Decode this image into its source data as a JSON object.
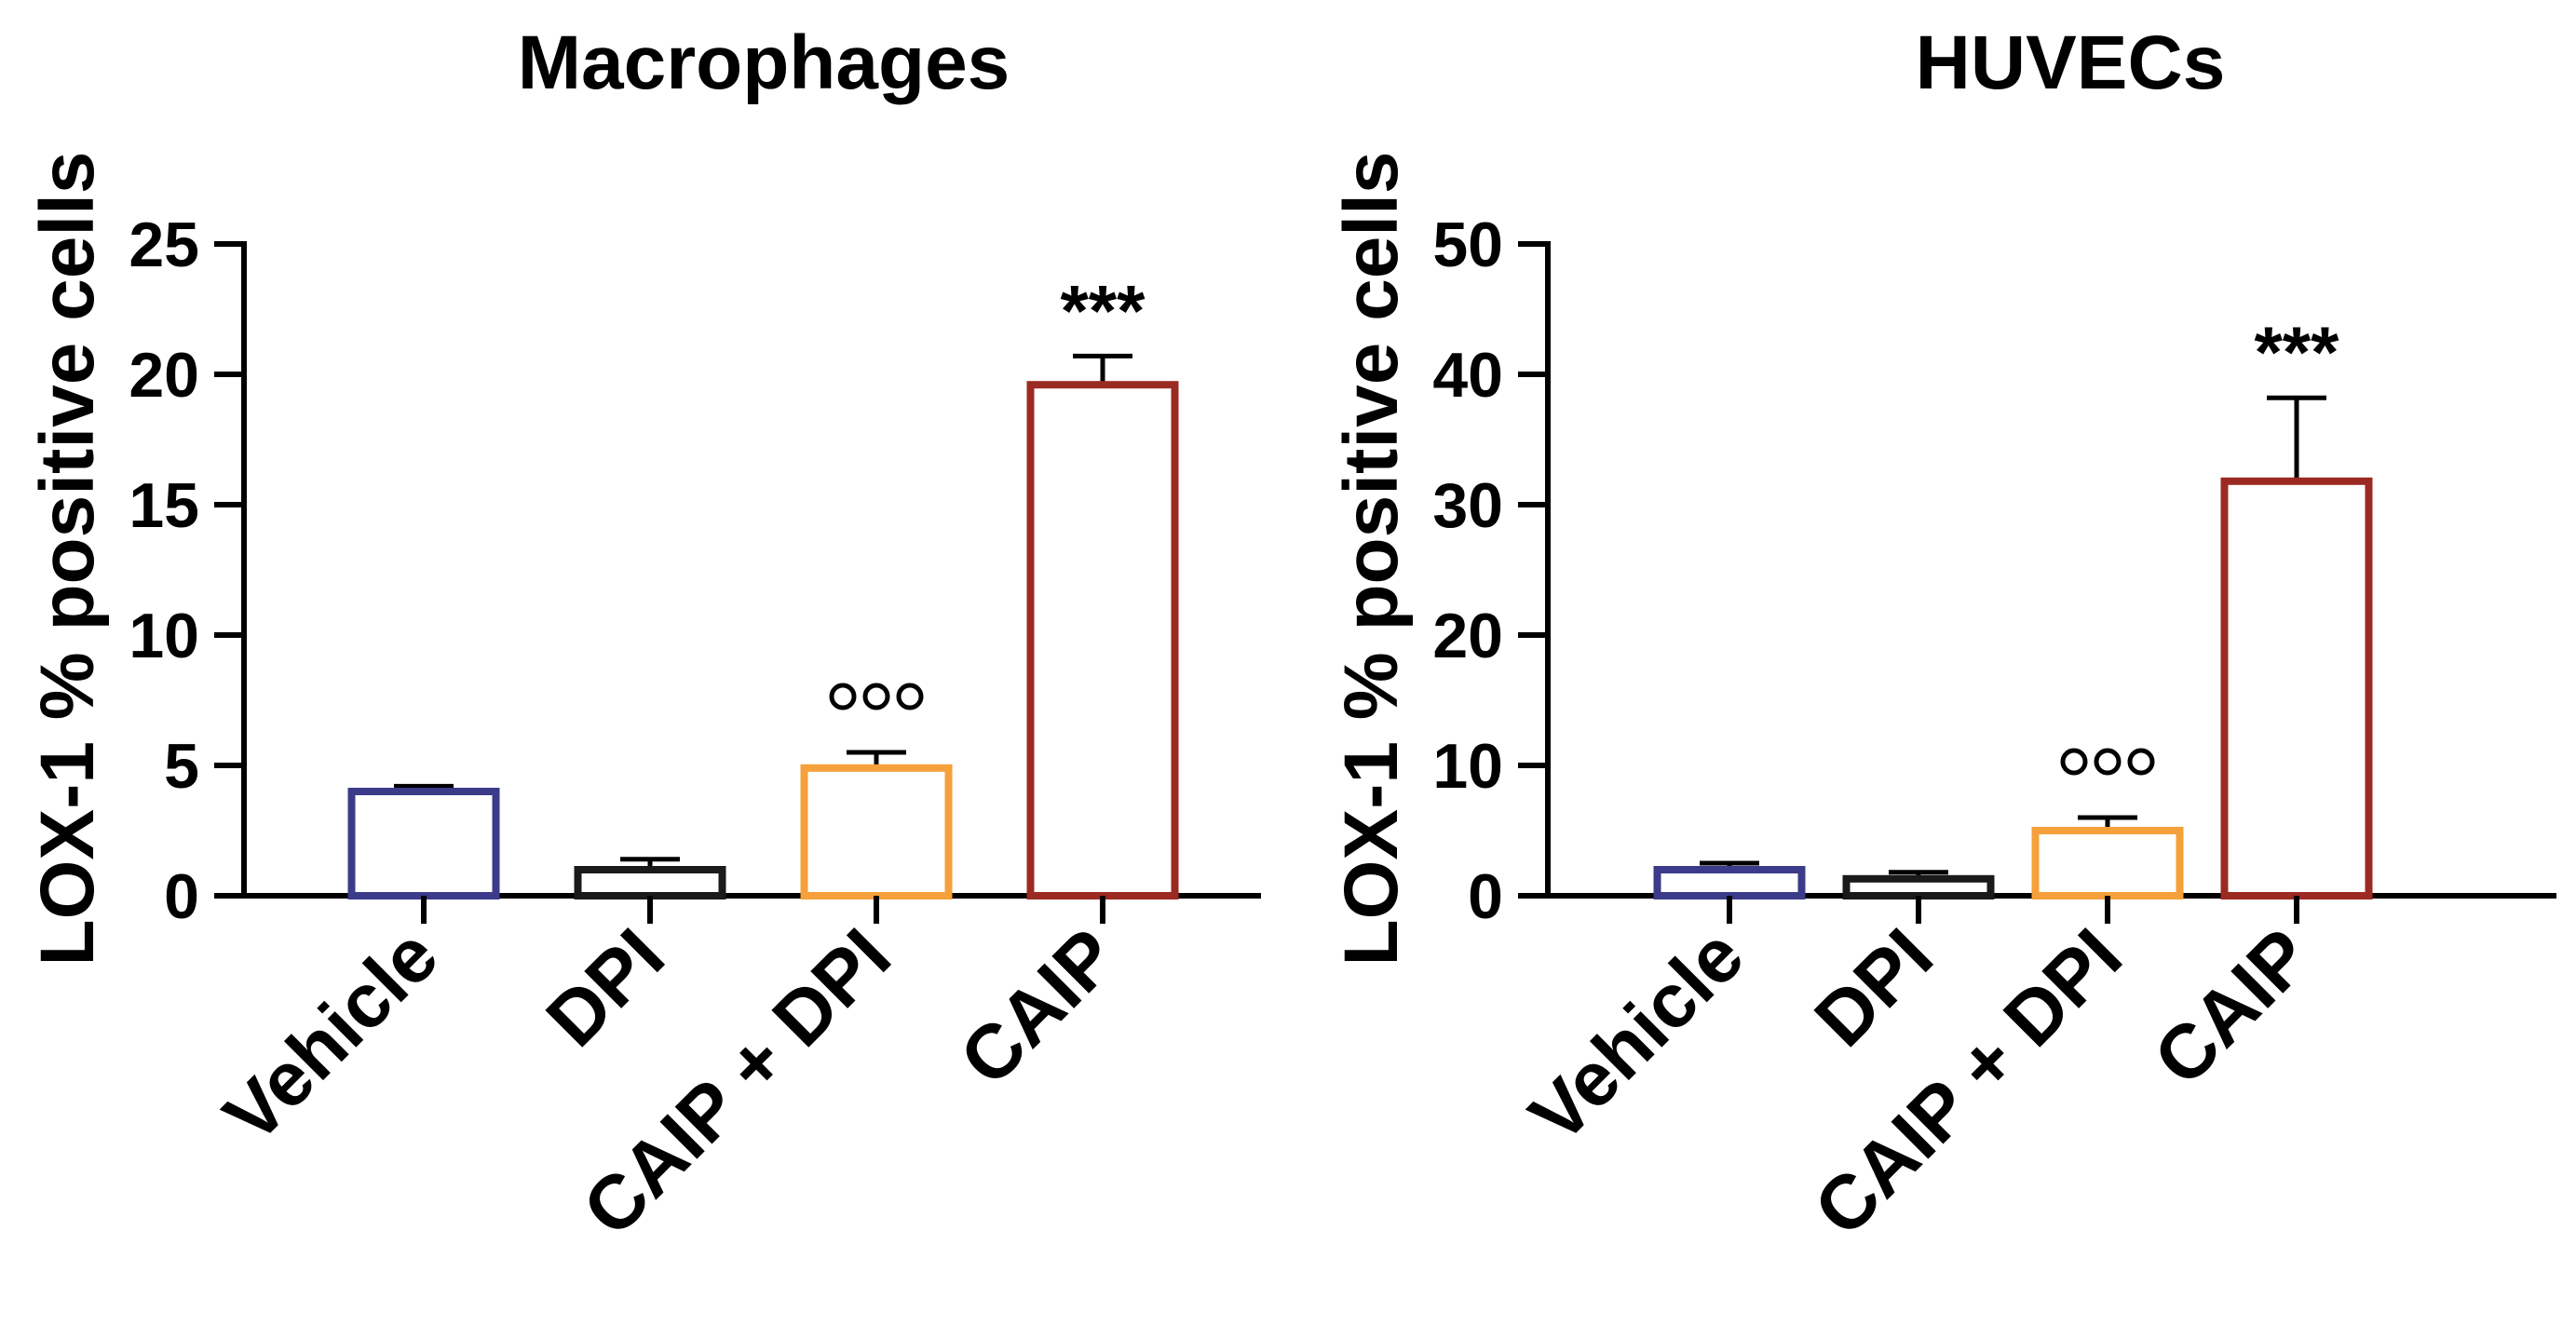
{
  "chart_data": [
    {
      "type": "bar",
      "title": "Macrophages",
      "ylabel": "LOX-1 % positive cells",
      "xlabel": "",
      "categories": [
        "Vehicle",
        "DPI",
        "CAIP + DPI",
        "CAIP"
      ],
      "values": [
        4.0,
        1.0,
        4.9,
        19.6
      ],
      "errors": [
        0.2,
        0.4,
        0.6,
        1.1
      ],
      "bar_colors": [
        "#3b3b8a",
        "#1a1a1a",
        "#f5a03a",
        "#9b2a22"
      ],
      "annotations": [
        "",
        "",
        "ooo",
        "***"
      ],
      "ylim": [
        0,
        25
      ],
      "yticks": [
        0,
        5,
        10,
        15,
        20,
        25
      ],
      "ytick_labels": [
        "0",
        "5",
        "10",
        "15",
        "20",
        "25"
      ]
    },
    {
      "type": "bar",
      "title": "HUVECs",
      "ylabel": "LOX-1 % positive cells",
      "xlabel": "",
      "categories": [
        "Vehicle",
        "DPI",
        "CAIP + DPI",
        "CAIP"
      ],
      "values": [
        2.0,
        1.3,
        5.0,
        31.8
      ],
      "errors": [
        0.5,
        0.5,
        1.0,
        6.4
      ],
      "bar_colors": [
        "#3b3b8a",
        "#1a1a1a",
        "#f5a03a",
        "#9b2a22"
      ],
      "annotations": [
        "",
        "",
        "ooo",
        "***"
      ],
      "ylim": [
        0,
        50
      ],
      "yticks": [
        0,
        10,
        20,
        30,
        40,
        50
      ],
      "ytick_labels": [
        "0",
        "10",
        "20",
        "30",
        "40",
        "50"
      ]
    }
  ]
}
